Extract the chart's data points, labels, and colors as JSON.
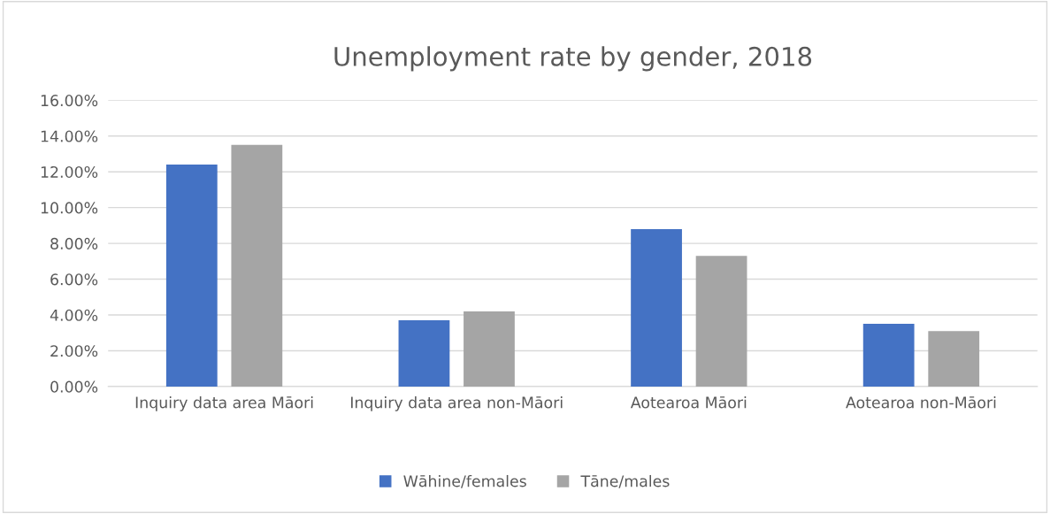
{
  "chart_data": {
    "type": "bar",
    "title": "Unemployment rate by gender, 2018",
    "categories": [
      "Inquiry data area Māori",
      "Inquiry data area non-Māori",
      "Aotearoa Māori",
      "Aotearoa non-Māori"
    ],
    "series": [
      {
        "name": "Wāhine/females",
        "color": "#4472c4",
        "values": [
          12.4,
          3.7,
          8.8,
          3.5
        ]
      },
      {
        "name": "Tāne/males",
        "color": "#a5a5a5",
        "values": [
          13.5,
          4.2,
          7.3,
          3.1
        ]
      }
    ],
    "ylim": [
      0,
      16
    ],
    "yticks": [
      {
        "value": 0,
        "label": "0.00%"
      },
      {
        "value": 2,
        "label": "2.00%"
      },
      {
        "value": 4,
        "label": "4.00%"
      },
      {
        "value": 6,
        "label": "6.00%"
      },
      {
        "value": 8,
        "label": "8.00%"
      },
      {
        "value": 10,
        "label": "10.00%"
      },
      {
        "value": 12,
        "label": "12.00%"
      },
      {
        "value": 14,
        "label": "14.00%"
      },
      {
        "value": 16,
        "label": "16.00%"
      }
    ],
    "grid": "y",
    "legend": "bottom"
  }
}
